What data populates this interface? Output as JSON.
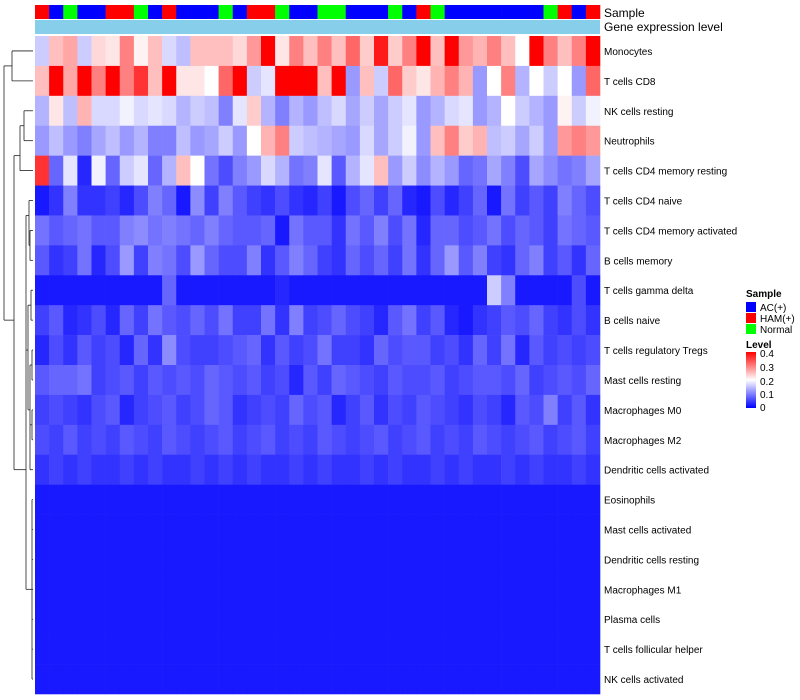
{
  "chart_data": {
    "type": "heatmap",
    "annotation_labels": [
      "Sample",
      "Gene expression level"
    ],
    "rows": [
      "Monocytes",
      "T cells CD8",
      "NK cells resting",
      "Neutrophils",
      "T cells CD4 memory resting",
      "T cells CD4 naive",
      "T cells CD4 memory activated",
      "B cells memory",
      "T cells gamma delta",
      "B cells naive",
      "T cells regulatory  Tregs",
      "Mast cells resting",
      "Macrophages M0",
      "Macrophages M2",
      "Dendritic cells activated",
      "Eosinophils",
      "Mast cells activated",
      "Dendritic cells resting",
      "Macrophages M1",
      "Plasma cells",
      "T cells follicular helper",
      "NK cells activated"
    ],
    "sample_groups": [
      "HAM(+)",
      "AC(+)",
      "Normal",
      "AC(+)",
      "AC(+)",
      "HAM(+)",
      "HAM(+)",
      "Normal",
      "AC(+)",
      "HAM(+)",
      "AC(+)",
      "AC(+)",
      "AC(+)",
      "Normal",
      "AC(+)",
      "HAM(+)",
      "HAM(+)",
      "Normal",
      "AC(+)",
      "AC(+)",
      "Normal",
      "Normal",
      "AC(+)",
      "AC(+)",
      "AC(+)",
      "Normal",
      "AC(+)",
      "HAM(+)",
      "Normal",
      "AC(+)",
      "AC(+)",
      "AC(+)",
      "AC(+)",
      "AC(+)",
      "AC(+)",
      "AC(+)",
      "Normal",
      "HAM(+)",
      "AC(+)",
      "HAM(+)"
    ],
    "values": [
      [
        0.16,
        0.25,
        0.27,
        0.16,
        0.23,
        0.22,
        0.3,
        0.21,
        0.25,
        0.17,
        0.15,
        0.25,
        0.25,
        0.25,
        0.23,
        0.28,
        0.4,
        0.22,
        0.3,
        0.25,
        0.3,
        0.25,
        0.32,
        0.24,
        0.38,
        0.24,
        0.3,
        0.42,
        0.25,
        0.4,
        0.28,
        0.26,
        0.3,
        0.25,
        0.2,
        0.42,
        0.3,
        0.25,
        0.3,
        0.4
      ],
      [
        0.25,
        0.4,
        0.27,
        0.4,
        0.3,
        0.4,
        0.3,
        0.36,
        0.25,
        0.4,
        0.22,
        0.22,
        0.2,
        0.32,
        0.4,
        0.16,
        0.18,
        0.4,
        0.4,
        0.4,
        0.25,
        0.4,
        0.12,
        0.25,
        0.16,
        0.32,
        0.24,
        0.22,
        0.26,
        0.3,
        0.26,
        0.12,
        0.2,
        0.3,
        0.14,
        0.2,
        0.16,
        0.2,
        0.12,
        0.32
      ],
      [
        0.14,
        0.22,
        0.15,
        0.26,
        0.17,
        0.17,
        0.19,
        0.17,
        0.18,
        0.17,
        0.14,
        0.16,
        0.15,
        0.1,
        0.18,
        0.24,
        0.14,
        0.1,
        0.14,
        0.12,
        0.15,
        0.17,
        0.13,
        0.16,
        0.13,
        0.16,
        0.18,
        0.12,
        0.14,
        0.17,
        0.18,
        0.12,
        0.14,
        0.2,
        0.16,
        0.14,
        0.12,
        0.21,
        0.16,
        0.19
      ],
      [
        0.12,
        0.15,
        0.12,
        0.1,
        0.13,
        0.15,
        0.12,
        0.14,
        0.1,
        0.1,
        0.15,
        0.12,
        0.13,
        0.16,
        0.12,
        0.2,
        0.26,
        0.3,
        0.16,
        0.15,
        0.14,
        0.13,
        0.12,
        0.17,
        0.13,
        0.16,
        0.19,
        0.12,
        0.25,
        0.3,
        0.24,
        0.26,
        0.15,
        0.16,
        0.13,
        0.16,
        0.12,
        0.28,
        0.3,
        0.28
      ],
      [
        0.36,
        0.08,
        0.18,
        0.03,
        0.19,
        0.08,
        0.16,
        0.18,
        0.08,
        0.14,
        0.25,
        0.2,
        0.09,
        0.06,
        0.1,
        0.12,
        0.17,
        0.14,
        0.09,
        0.1,
        0.18,
        0.07,
        0.14,
        0.18,
        0.25,
        0.12,
        0.16,
        0.11,
        0.14,
        0.12,
        0.08,
        0.09,
        0.13,
        0.1,
        0.06,
        0.13,
        0.11,
        0.09,
        0.1,
        0.13
      ],
      [
        0.02,
        0.04,
        0.1,
        0.04,
        0.04,
        0.05,
        0.03,
        0.06,
        0.1,
        0.08,
        0.02,
        0.11,
        0.05,
        0.1,
        0.07,
        0.05,
        0.04,
        0.06,
        0.04,
        0.03,
        0.05,
        0.02,
        0.06,
        0.08,
        0.05,
        0.08,
        0.03,
        0.02,
        0.06,
        0.03,
        0.05,
        0.08,
        0.02,
        0.09,
        0.05,
        0.07,
        0.05,
        0.1,
        0.08,
        0.06
      ],
      [
        0.09,
        0.07,
        0.08,
        0.09,
        0.07,
        0.07,
        0.1,
        0.11,
        0.09,
        0.1,
        0.09,
        0.08,
        0.1,
        0.08,
        0.07,
        0.07,
        0.08,
        0.02,
        0.09,
        0.07,
        0.07,
        0.04,
        0.09,
        0.07,
        0.1,
        0.06,
        0.09,
        0.03,
        0.08,
        0.08,
        0.06,
        0.07,
        0.09,
        0.06,
        0.08,
        0.07,
        0.05,
        0.09,
        0.08,
        0.07
      ],
      [
        0.07,
        0.04,
        0.05,
        0.09,
        0.03,
        0.06,
        0.12,
        0.05,
        0.1,
        0.09,
        0.06,
        0.12,
        0.08,
        0.06,
        0.06,
        0.1,
        0.04,
        0.07,
        0.1,
        0.08,
        0.05,
        0.04,
        0.08,
        0.06,
        0.08,
        0.05,
        0.09,
        0.04,
        0.08,
        0.12,
        0.07,
        0.1,
        0.05,
        0.04,
        0.08,
        0.1,
        0.05,
        0.07,
        0.04,
        0.08
      ],
      [
        0.02,
        0.02,
        0.02,
        0.02,
        0.02,
        0.02,
        0.02,
        0.02,
        0.02,
        0.08,
        0.02,
        0.02,
        0.02,
        0.02,
        0.02,
        0.02,
        0.02,
        0.03,
        0.02,
        0.02,
        0.02,
        0.02,
        0.02,
        0.02,
        0.02,
        0.02,
        0.02,
        0.02,
        0.02,
        0.02,
        0.02,
        0.02,
        0.16,
        0.1,
        0.02,
        0.02,
        0.02,
        0.02,
        0.06,
        0.02
      ],
      [
        0.05,
        0.07,
        0.03,
        0.04,
        0.06,
        0.03,
        0.08,
        0.05,
        0.09,
        0.07,
        0.06,
        0.08,
        0.06,
        0.09,
        0.05,
        0.05,
        0.09,
        0.04,
        0.1,
        0.05,
        0.06,
        0.08,
        0.06,
        0.05,
        0.03,
        0.07,
        0.09,
        0.05,
        0.07,
        0.03,
        0.02,
        0.04,
        0.05,
        0.07,
        0.06,
        0.08,
        0.05,
        0.04,
        0.06,
        0.04
      ],
      [
        0.03,
        0.06,
        0.04,
        0.07,
        0.05,
        0.06,
        0.03,
        0.08,
        0.04,
        0.11,
        0.06,
        0.05,
        0.05,
        0.06,
        0.07,
        0.08,
        0.04,
        0.07,
        0.05,
        0.06,
        0.09,
        0.05,
        0.05,
        0.04,
        0.08,
        0.06,
        0.07,
        0.07,
        0.05,
        0.06,
        0.04,
        0.08,
        0.05,
        0.09,
        0.03,
        0.07,
        0.05,
        0.06,
        0.05,
        0.06
      ],
      [
        0.07,
        0.08,
        0.08,
        0.09,
        0.05,
        0.06,
        0.07,
        0.05,
        0.07,
        0.06,
        0.07,
        0.06,
        0.08,
        0.07,
        0.06,
        0.07,
        0.05,
        0.06,
        0.03,
        0.07,
        0.05,
        0.08,
        0.07,
        0.06,
        0.05,
        0.07,
        0.06,
        0.06,
        0.07,
        0.05,
        0.06,
        0.07,
        0.07,
        0.06,
        0.08,
        0.05,
        0.06,
        0.07,
        0.06,
        0.08
      ],
      [
        0.05,
        0.06,
        0.05,
        0.04,
        0.06,
        0.07,
        0.03,
        0.05,
        0.06,
        0.07,
        0.05,
        0.06,
        0.08,
        0.07,
        0.04,
        0.05,
        0.06,
        0.05,
        0.08,
        0.06,
        0.07,
        0.03,
        0.05,
        0.07,
        0.04,
        0.06,
        0.05,
        0.07,
        0.06,
        0.05,
        0.04,
        0.06,
        0.05,
        0.03,
        0.07,
        0.06,
        0.1,
        0.05,
        0.07,
        0.04
      ],
      [
        0.06,
        0.05,
        0.07,
        0.05,
        0.06,
        0.05,
        0.07,
        0.06,
        0.05,
        0.07,
        0.06,
        0.05,
        0.06,
        0.07,
        0.05,
        0.06,
        0.07,
        0.05,
        0.06,
        0.05,
        0.07,
        0.06,
        0.05,
        0.06,
        0.07,
        0.05,
        0.06,
        0.07,
        0.05,
        0.06,
        0.05,
        0.07,
        0.06,
        0.05,
        0.06,
        0.07,
        0.05,
        0.06,
        0.07,
        0.05
      ],
      [
        0.04,
        0.05,
        0.04,
        0.05,
        0.04,
        0.04,
        0.05,
        0.04,
        0.05,
        0.04,
        0.04,
        0.05,
        0.04,
        0.05,
        0.04,
        0.05,
        0.04,
        0.04,
        0.05,
        0.04,
        0.05,
        0.04,
        0.04,
        0.05,
        0.04,
        0.05,
        0.04,
        0.04,
        0.05,
        0.04,
        0.05,
        0.04,
        0.04,
        0.05,
        0.04,
        0.05,
        0.04,
        0.04,
        0.05,
        0.04
      ],
      [
        0.02,
        0.02,
        0.02,
        0.02,
        0.02,
        0.02,
        0.02,
        0.02,
        0.02,
        0.02,
        0.02,
        0.02,
        0.02,
        0.02,
        0.02,
        0.02,
        0.02,
        0.02,
        0.02,
        0.02,
        0.02,
        0.02,
        0.02,
        0.02,
        0.02,
        0.02,
        0.02,
        0.02,
        0.02,
        0.02,
        0.02,
        0.02,
        0.02,
        0.02,
        0.02,
        0.02,
        0.02,
        0.02,
        0.02,
        0.02
      ],
      [
        0.02,
        0.02,
        0.02,
        0.02,
        0.02,
        0.02,
        0.02,
        0.02,
        0.02,
        0.02,
        0.02,
        0.02,
        0.02,
        0.02,
        0.02,
        0.02,
        0.02,
        0.02,
        0.02,
        0.02,
        0.02,
        0.02,
        0.02,
        0.02,
        0.02,
        0.02,
        0.02,
        0.02,
        0.02,
        0.02,
        0.02,
        0.02,
        0.02,
        0.02,
        0.02,
        0.02,
        0.02,
        0.02,
        0.02,
        0.02
      ],
      [
        0.02,
        0.02,
        0.02,
        0.02,
        0.02,
        0.02,
        0.02,
        0.02,
        0.02,
        0.02,
        0.02,
        0.02,
        0.02,
        0.02,
        0.02,
        0.02,
        0.02,
        0.02,
        0.02,
        0.02,
        0.02,
        0.02,
        0.02,
        0.02,
        0.02,
        0.02,
        0.02,
        0.02,
        0.02,
        0.02,
        0.02,
        0.02,
        0.02,
        0.02,
        0.02,
        0.02,
        0.02,
        0.02,
        0.02,
        0.02
      ],
      [
        0.02,
        0.02,
        0.02,
        0.02,
        0.02,
        0.02,
        0.02,
        0.02,
        0.02,
        0.02,
        0.02,
        0.02,
        0.02,
        0.02,
        0.02,
        0.02,
        0.02,
        0.02,
        0.02,
        0.02,
        0.02,
        0.02,
        0.02,
        0.02,
        0.02,
        0.02,
        0.02,
        0.02,
        0.02,
        0.02,
        0.02,
        0.02,
        0.02,
        0.02,
        0.02,
        0.02,
        0.02,
        0.02,
        0.02,
        0.02
      ],
      [
        0.02,
        0.02,
        0.02,
        0.02,
        0.02,
        0.02,
        0.02,
        0.02,
        0.02,
        0.02,
        0.02,
        0.02,
        0.02,
        0.02,
        0.02,
        0.02,
        0.02,
        0.02,
        0.02,
        0.02,
        0.02,
        0.02,
        0.02,
        0.02,
        0.02,
        0.02,
        0.02,
        0.02,
        0.02,
        0.02,
        0.02,
        0.02,
        0.02,
        0.02,
        0.02,
        0.02,
        0.02,
        0.02,
        0.02,
        0.02
      ],
      [
        0.02,
        0.02,
        0.02,
        0.02,
        0.02,
        0.02,
        0.02,
        0.02,
        0.02,
        0.02,
        0.02,
        0.02,
        0.02,
        0.02,
        0.02,
        0.02,
        0.02,
        0.02,
        0.02,
        0.02,
        0.02,
        0.02,
        0.02,
        0.02,
        0.02,
        0.02,
        0.02,
        0.02,
        0.02,
        0.02,
        0.02,
        0.02,
        0.02,
        0.02,
        0.02,
        0.02,
        0.02,
        0.02,
        0.02,
        0.02
      ],
      [
        0.02,
        0.02,
        0.02,
        0.02,
        0.02,
        0.02,
        0.02,
        0.02,
        0.02,
        0.02,
        0.02,
        0.02,
        0.02,
        0.02,
        0.02,
        0.02,
        0.02,
        0.02,
        0.02,
        0.02,
        0.02,
        0.02,
        0.02,
        0.02,
        0.02,
        0.02,
        0.02,
        0.02,
        0.02,
        0.02,
        0.02,
        0.02,
        0.02,
        0.02,
        0.02,
        0.02,
        0.02,
        0.02,
        0.02,
        0.02
      ]
    ],
    "color_range": [
      0,
      0.4
    ],
    "color_stops": [
      "#0000ff",
      "#ffffff",
      "#ff0000"
    ],
    "expression_bar_color": "#87ceeb",
    "legend": {
      "sample_title": "Sample",
      "sample_entries": [
        {
          "label": "AC(+)",
          "color": "#0000ff"
        },
        {
          "label": "HAM(+)",
          "color": "#ff0000"
        },
        {
          "label": "Normal",
          "color": "#00ff00"
        }
      ],
      "level_title": "Level",
      "level_ticks": [
        "0.4",
        "0.3",
        "0.2",
        "0.1",
        "0"
      ]
    }
  }
}
